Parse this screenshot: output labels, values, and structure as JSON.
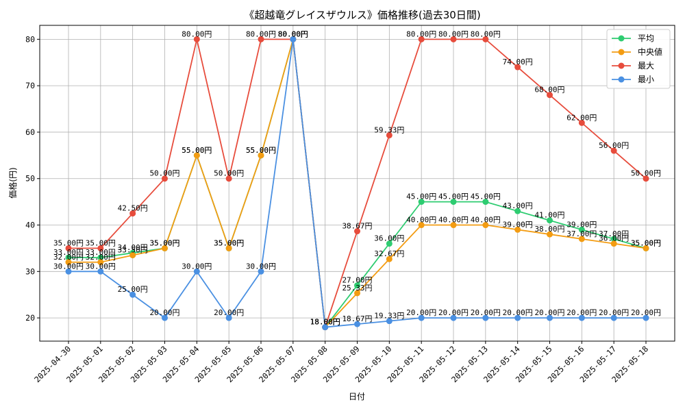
{
  "chart_data": {
    "type": "line",
    "title": "《超越竜グレイスザウルス》価格推移(過去30日間)",
    "xlabel": "日付",
    "ylabel": "価格(円)",
    "ylim": [
      15,
      83
    ],
    "yticks": [
      20,
      30,
      40,
      50,
      60,
      70,
      80
    ],
    "grid": true,
    "legend_position": "top-right",
    "value_suffix": "円",
    "categories": [
      "2025-04-30",
      "2025-05-01",
      "2025-05-02",
      "2025-05-03",
      "2025-05-04",
      "2025-05-05",
      "2025-05-06",
      "2025-05-07",
      "2025-05-08",
      "2025-05-09",
      "2025-05-10",
      "2025-05-11",
      "2025-05-12",
      "2025-05-13",
      "2025-05-14",
      "2025-05-15",
      "2025-05-16",
      "2025-05-17",
      "2025-05-18"
    ],
    "series": [
      {
        "name": "平均",
        "color": "#2ecc71",
        "values": [
          33.0,
          33.0,
          34.0,
          35.0,
          55.0,
          35.0,
          55.0,
          80.0,
          18.0,
          27.0,
          36.0,
          45.0,
          45.0,
          45.0,
          43.0,
          41.0,
          39.0,
          37.0,
          35.0
        ]
      },
      {
        "name": "中央値",
        "color": "#f39c12",
        "values": [
          32.0,
          32.0,
          33.5,
          35.0,
          55.0,
          35.0,
          55.0,
          80.0,
          18.0,
          25.33,
          32.67,
          40.0,
          40.0,
          40.0,
          39.0,
          38.0,
          37.0,
          36.0,
          35.0
        ]
      },
      {
        "name": "最大",
        "color": "#e74c3c",
        "values": [
          35.0,
          35.0,
          42.5,
          50.0,
          80.0,
          50.0,
          80.0,
          80.0,
          18.0,
          38.67,
          59.33,
          80.0,
          80.0,
          80.0,
          74.0,
          68.0,
          62.0,
          56.0,
          50.0
        ]
      },
      {
        "name": "最小",
        "color": "#4a90e2",
        "values": [
          30.0,
          30.0,
          25.0,
          20.0,
          30.0,
          20.0,
          30.0,
          80.0,
          18.0,
          18.67,
          19.33,
          20.0,
          20.0,
          20.0,
          20.0,
          20.0,
          20.0,
          20.0,
          20.0
        ]
      }
    ]
  }
}
